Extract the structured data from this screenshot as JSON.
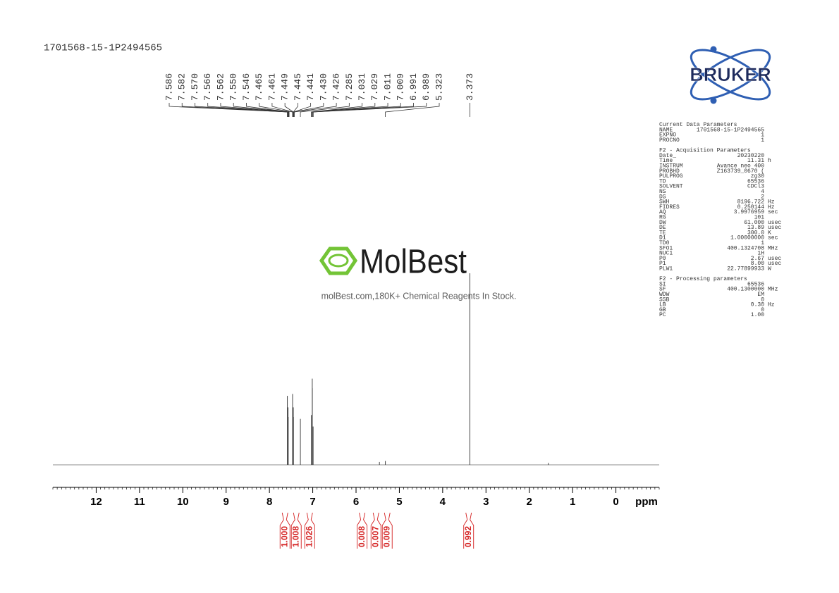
{
  "sample_id": "1701568-15-1P2494565",
  "watermark": {
    "brand": "MolBest",
    "slogan": "molBest.com,180K+ Chemical Reagents In Stock."
  },
  "vendor_logo": "BRUKER",
  "chart_data": {
    "type": "nmr",
    "x_label": "ppm",
    "xlim": [
      13,
      -1
    ],
    "xticks": [
      12,
      11,
      10,
      9,
      8,
      7,
      6,
      5,
      4,
      3,
      2,
      1,
      0
    ],
    "ylim": [
      0,
      100
    ],
    "peaks": {
      "x": [
        7.586,
        7.57,
        7.566,
        7.465,
        7.449,
        7.445,
        7.285,
        7.031,
        7.011,
        7.009,
        6.991,
        5.46,
        5.323,
        3.373,
        1.56
      ],
      "values": [
        36,
        30,
        25,
        37,
        30,
        25,
        24,
        26,
        45,
        40,
        20,
        1.5,
        2,
        100,
        1
      ]
    },
    "peak_labels": [
      7.586,
      7.582,
      {
        "value": 7.57,
        "label": "7.570"
      },
      7.566,
      7.562,
      {
        "value": 7.55,
        "label": "7.550"
      },
      7.546,
      7.465,
      7.461,
      7.449,
      7.445,
      7.441,
      {
        "value": 7.43,
        "label": "7.430"
      },
      7.426,
      7.285,
      7.031,
      7.029,
      7.011,
      7.009,
      6.991,
      6.989,
      5.323,
      3.373
    ],
    "integrals": {
      "x": [
        7.64,
        7.38,
        7.07,
        5.86,
        5.54,
        5.28,
        3.4
      ],
      "values": [
        1,
        1.008,
        1.026,
        0.008,
        0.007,
        0.009,
        0.992
      ],
      "value_labels": [
        "1.000",
        "1.008",
        "1.026",
        "0.008",
        "0.007",
        "0.009",
        "0.992"
      ],
      "color": "#d42020"
    }
  },
  "parameters": [
    {
      "title": "Current Data Parameters",
      "rows": [
        [
          "NAME",
          "1701568-15-1P2494565",
          ""
        ],
        [
          "EXPNO",
          "1",
          ""
        ],
        [
          "PROCNO",
          "1",
          ""
        ]
      ]
    },
    {
      "title": "F2 - Acquisition Parameters",
      "rows": [
        [
          "Date_",
          "20230220",
          ""
        ],
        [
          "Time",
          "11.31",
          "h"
        ],
        [
          "INSTRUM",
          "Avance neo 400",
          ""
        ],
        [
          "PROBHD",
          "Z163739_0670 (",
          ""
        ],
        [
          "PULPROG",
          "zg30",
          ""
        ],
        [
          "TD",
          "65536",
          ""
        ],
        [
          "SOLVENT",
          "CDCl3",
          ""
        ],
        [
          "NS",
          "4",
          ""
        ],
        [
          "DS",
          "2",
          ""
        ],
        [
          "SWH",
          "8196.722",
          "Hz"
        ],
        [
          "FIDRES",
          "0.250144",
          "Hz"
        ],
        [
          "AQ",
          "3.9976959",
          "sec"
        ],
        [
          "RG",
          "101",
          ""
        ],
        [
          "DW",
          "61.000",
          "usec"
        ],
        [
          "DE",
          "13.89",
          "usec"
        ],
        [
          "TE",
          "300.0",
          "K"
        ],
        [
          "D1",
          "1.00000000",
          "sec"
        ],
        [
          "TD0",
          "1",
          ""
        ],
        [
          "SFO1",
          "400.1324708",
          "MHz"
        ],
        [
          "NUC1",
          "1H",
          ""
        ],
        [
          "P0",
          "2.67",
          "usec"
        ],
        [
          "P1",
          "8.00",
          "usec"
        ],
        [
          "PLW1",
          "22.77899933",
          "W"
        ]
      ]
    },
    {
      "title": "F2 - Processing parameters",
      "rows": [
        [
          "SI",
          "65536",
          ""
        ],
        [
          "SF",
          "400.1300000",
          "MHz"
        ],
        [
          "WDW",
          "EM",
          ""
        ],
        [
          "SSB",
          "0",
          ""
        ],
        [
          "LB",
          "0.30",
          "Hz"
        ],
        [
          "GB",
          "0",
          ""
        ],
        [
          "PC",
          "1.00",
          ""
        ]
      ]
    }
  ]
}
